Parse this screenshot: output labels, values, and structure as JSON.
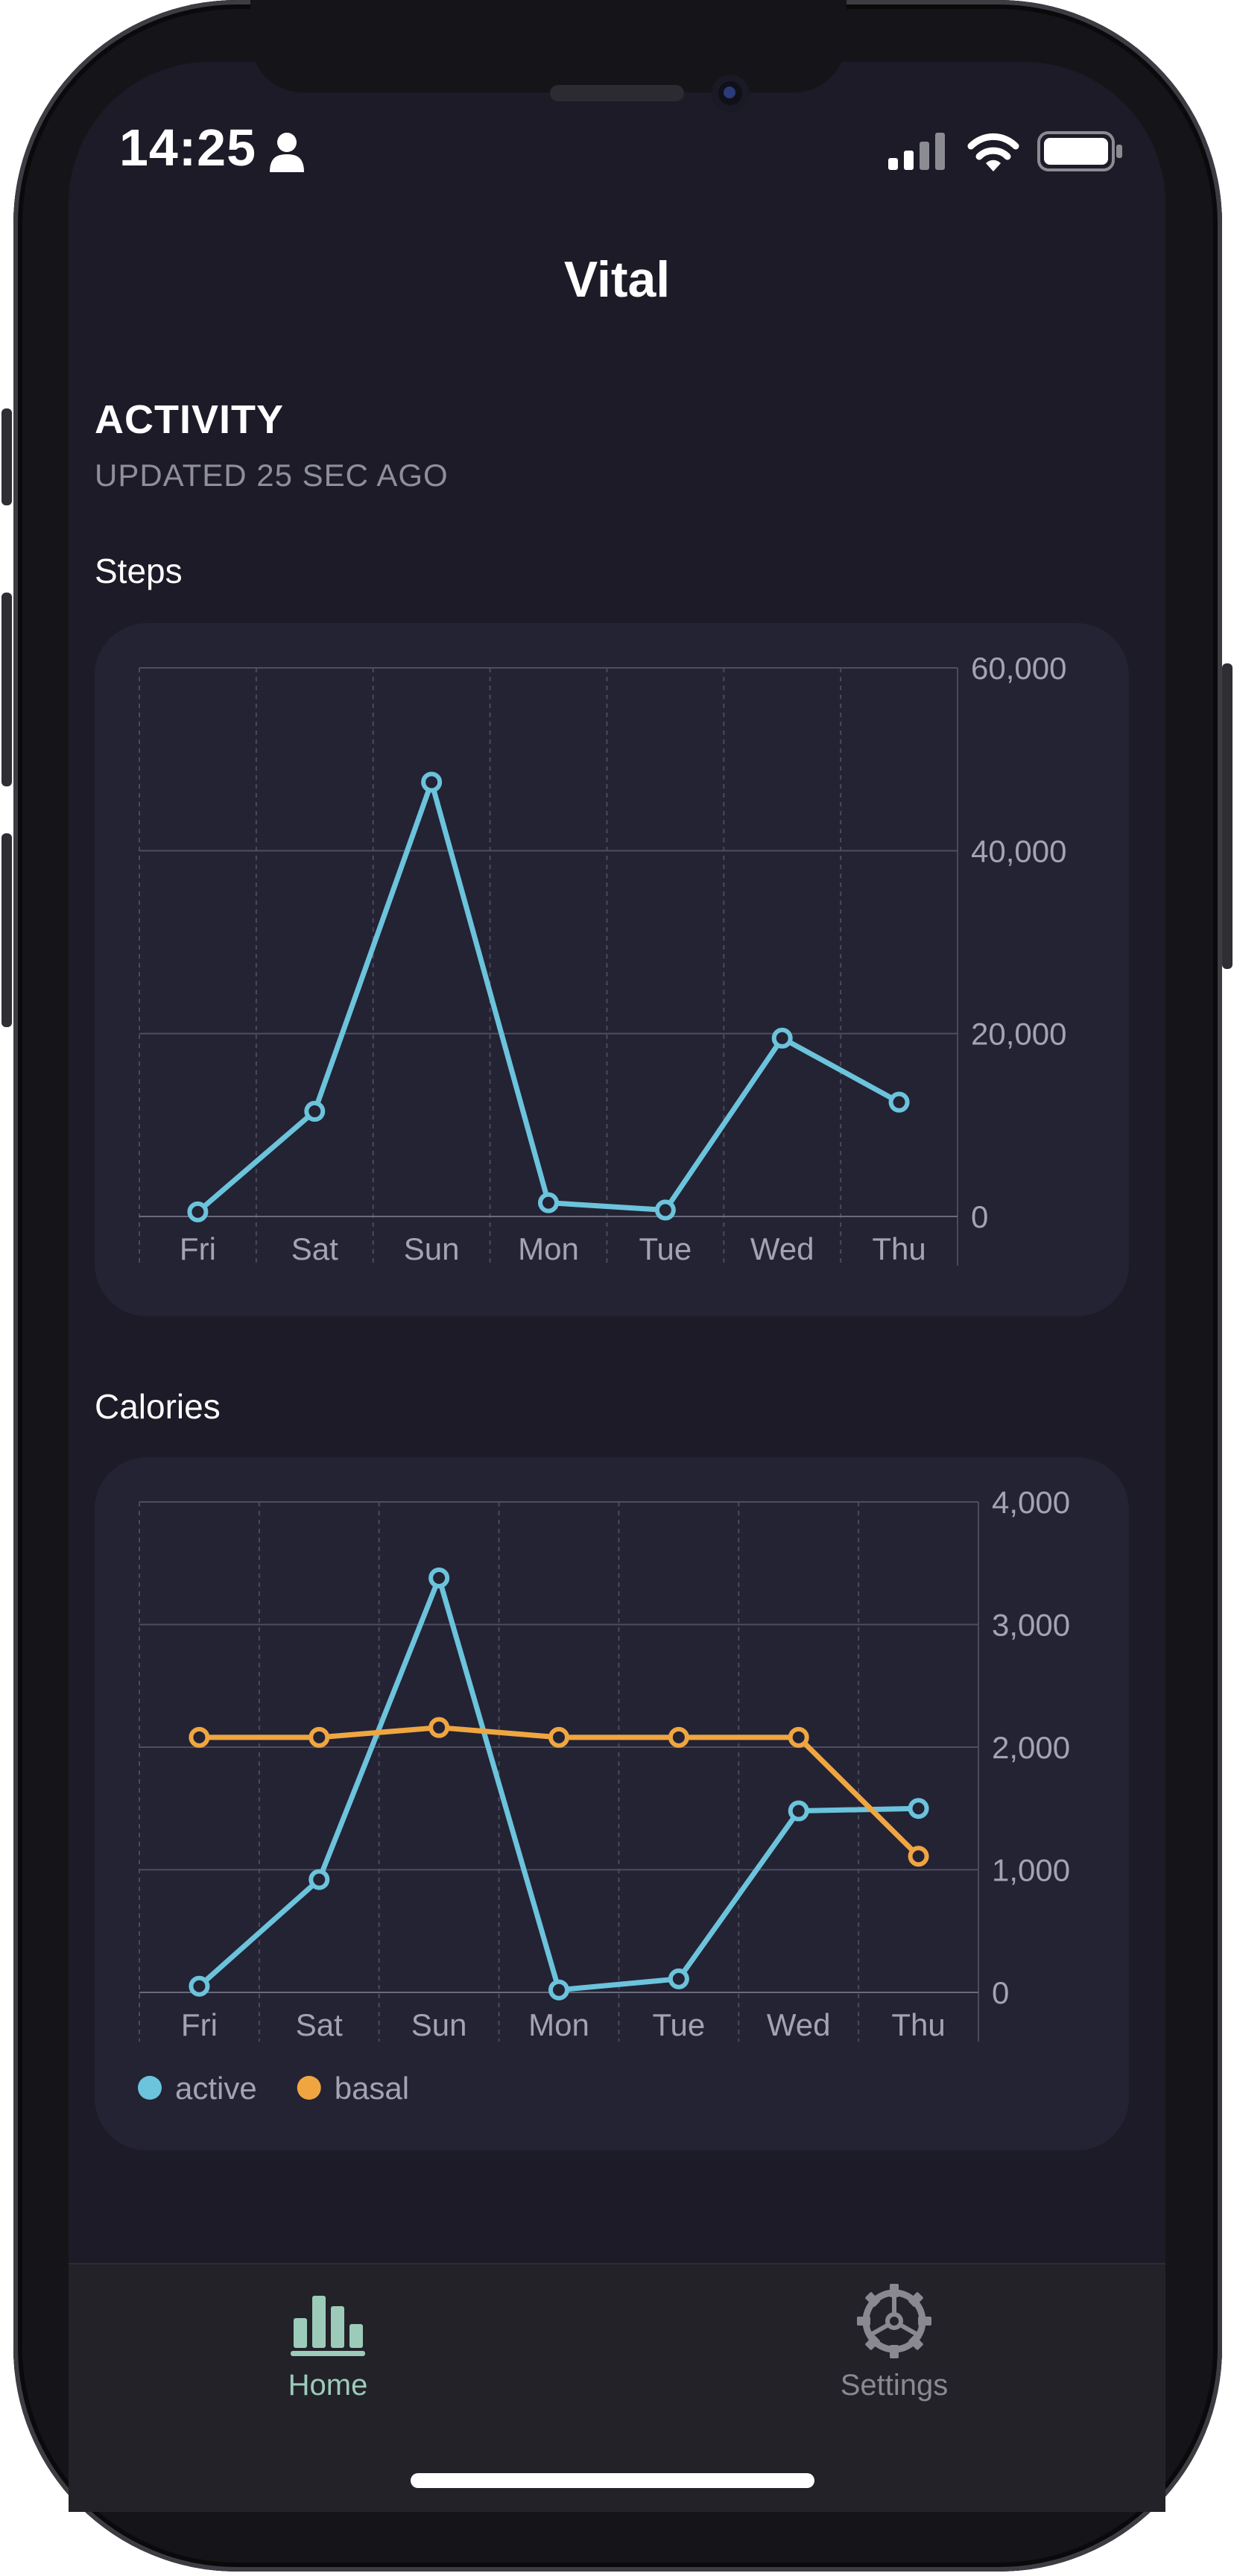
{
  "status_bar": {
    "time": "14:25",
    "icons": [
      "person-icon",
      "cellular-signal-icon",
      "wifi-icon",
      "battery-icon"
    ]
  },
  "app": {
    "title": "Vital"
  },
  "section": {
    "title": "ACTIVITY",
    "updated": "UPDATED 25 SEC AGO"
  },
  "charts": {
    "steps": {
      "label": "Steps"
    },
    "calories": {
      "label": "Calories"
    }
  },
  "tabbar": {
    "home_label": "Home",
    "settings_label": "Settings",
    "active_tab": "Home"
  },
  "colors": {
    "active": "#6cc3dc",
    "basal": "#f0a640",
    "tab_active": "#9ccbb9",
    "tab_inactive": "#8a8992"
  },
  "chart_data": [
    {
      "type": "line",
      "categories": [
        "Fri",
        "Sat",
        "Sun",
        "Mon",
        "Tue",
        "Wed",
        "Thu"
      ],
      "series": [
        {
          "values": [
            500,
            11500,
            47500,
            1500,
            700,
            19500,
            12500
          ]
        }
      ],
      "ylim": [
        0,
        60000
      ],
      "yticks": [
        "60,000",
        "40,000",
        "20,000",
        "0"
      ],
      "ytick_values": [
        60000,
        40000,
        20000,
        0
      ],
      "grid": true
    },
    {
      "type": "line",
      "categories": [
        "Fri",
        "Sat",
        "Sun",
        "Mon",
        "Tue",
        "Wed",
        "Thu"
      ],
      "series": [
        {
          "name": "active",
          "color": "#6cc3dc",
          "values": [
            50,
            920,
            3380,
            20,
            110,
            1480,
            1500
          ]
        },
        {
          "name": "basal",
          "color": "#f0a640",
          "values": [
            2080,
            2080,
            2160,
            2080,
            2080,
            2080,
            1110
          ]
        }
      ],
      "ylim": [
        0,
        4000
      ],
      "yticks": [
        "4,000",
        "3,000",
        "2,000",
        "1,000",
        "0"
      ],
      "ytick_values": [
        4000,
        3000,
        2000,
        1000,
        0
      ],
      "grid": true,
      "legend": "bottom-left"
    }
  ]
}
